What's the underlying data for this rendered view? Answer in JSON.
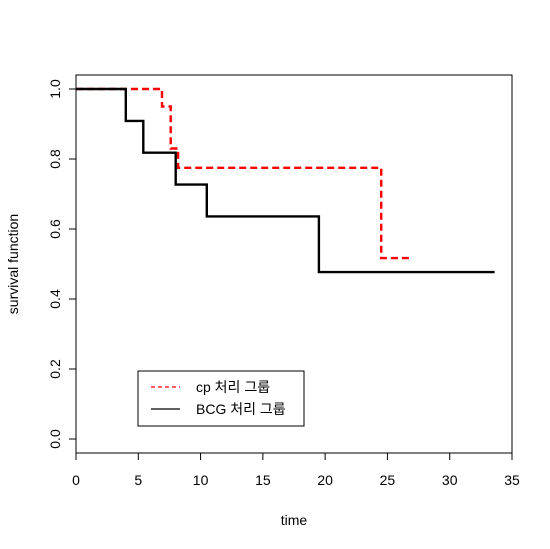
{
  "chart_data": {
    "type": "line",
    "xlabel": "time",
    "ylabel": "survival function",
    "xlim": [
      0,
      35
    ],
    "ylim": [
      -0.04,
      1.04
    ],
    "xticks": [
      "0",
      "5",
      "10",
      "15",
      "20",
      "25",
      "30",
      "35"
    ],
    "yticks": [
      "0.0",
      "0.2",
      "0.4",
      "0.6",
      "0.8",
      "1.0"
    ],
    "grid": false,
    "legend_position": "bottom-left",
    "series": [
      {
        "name": "cp 처리 그룹",
        "style": "dashed",
        "color": "#ff0000",
        "steps": [
          [
            0,
            1.0
          ],
          [
            6.9,
            1.0
          ],
          [
            6.9,
            0.95
          ],
          [
            7.6,
            0.95
          ],
          [
            7.6,
            0.83
          ],
          [
            8.2,
            0.83
          ],
          [
            8.2,
            0.775
          ],
          [
            24.5,
            0.775
          ],
          [
            24.5,
            0.517
          ],
          [
            27.0,
            0.517
          ]
        ]
      },
      {
        "name": "BCG 처리 그룹",
        "style": "solid",
        "color": "#000000",
        "steps": [
          [
            0,
            1.0
          ],
          [
            4.0,
            1.0
          ],
          [
            4.0,
            0.909
          ],
          [
            5.4,
            0.909
          ],
          [
            5.4,
            0.818
          ],
          [
            8.0,
            0.818
          ],
          [
            8.0,
            0.727
          ],
          [
            10.5,
            0.727
          ],
          [
            10.5,
            0.636
          ],
          [
            19.5,
            0.636
          ],
          [
            19.5,
            0.477
          ],
          [
            33.6,
            0.477
          ]
        ]
      }
    ]
  }
}
